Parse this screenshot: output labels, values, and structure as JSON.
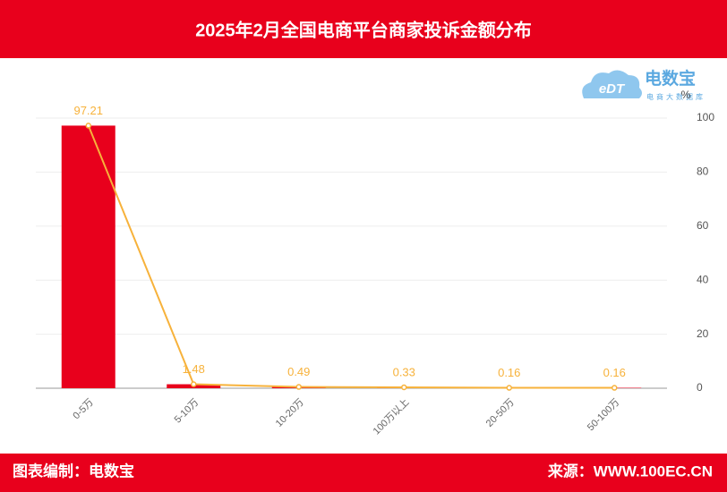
{
  "chart_data": {
    "type": "bar_line",
    "title": "2025年2月全国电商平台商家投诉金额分布",
    "categories": [
      "0-5万",
      "5-10万",
      "10-20万",
      "100万以上",
      "20-50万",
      "50-100万"
    ],
    "values": [
      97.21,
      1.48,
      0.49,
      0.33,
      0.16,
      0.16
    ],
    "bar_color": "#e8001c",
    "line_color": "#f7b23b",
    "y_unit": "%",
    "ylim": [
      0,
      100
    ],
    "yticks": [
      0,
      20,
      40,
      60,
      80,
      100
    ],
    "grid": true
  },
  "logo": {
    "mark": "eDT",
    "name": "电数宝",
    "tagline": "电商大数据库"
  },
  "footer": {
    "left": "图表编制：电数宝",
    "right": "来源：WWW.100EC.CN"
  }
}
